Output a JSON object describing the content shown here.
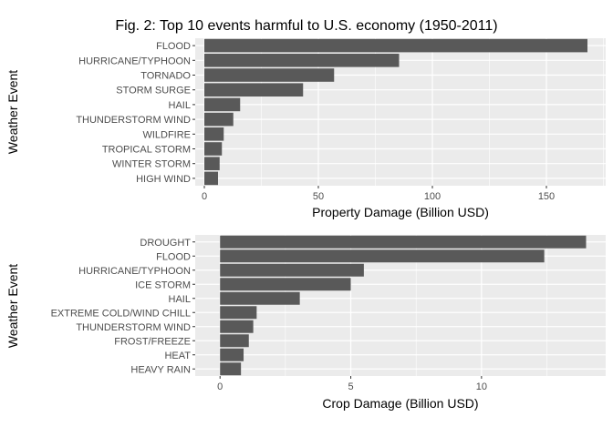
{
  "title": "Fig. 2: Top 10 events harmful to U.S. economy (1950-2011)",
  "chart_data": [
    {
      "type": "bar",
      "orientation": "horizontal",
      "categories": [
        "FLOOD",
        "HURRICANE/TYPHOON",
        "TORNADO",
        "STORM SURGE",
        "HAIL",
        "THUNDERSTORM WIND",
        "WILDFIRE",
        "TROPICAL STORM",
        "WINTER STORM",
        "HIGH WIND"
      ],
      "values": [
        168,
        85.4,
        56.9,
        43.3,
        15.7,
        12.7,
        8.5,
        7.7,
        6.7,
        6.0
      ],
      "xlabel": "Property Damage (Billion USD)",
      "ylabel": "Weather Event",
      "xlim": [
        -4,
        176
      ],
      "xticks": [
        0,
        50,
        100,
        150
      ],
      "grid": true,
      "bar_color": "#595959",
      "panel_color": "#ebebeb"
    },
    {
      "type": "bar",
      "orientation": "horizontal",
      "categories": [
        "DROUGHT",
        "FLOOD",
        "HURRICANE/TYPHOON",
        "ICE STORM",
        "HAIL",
        "EXTREME COLD/WIND CHILL",
        "THUNDERSTORM WIND",
        "FROST/FREEZE",
        "HEAT",
        "HEAVY RAIN"
      ],
      "values": [
        14.0,
        12.4,
        5.5,
        5.0,
        3.05,
        1.4,
        1.27,
        1.1,
        0.9,
        0.8
      ],
      "xlabel": "Crop Damage (Billion USD)",
      "ylabel": "Weather Event",
      "xlim": [
        -0.95,
        14.75
      ],
      "xticks": [
        0,
        5,
        10
      ],
      "grid": true,
      "bar_color": "#595959",
      "panel_color": "#ebebeb"
    }
  ]
}
